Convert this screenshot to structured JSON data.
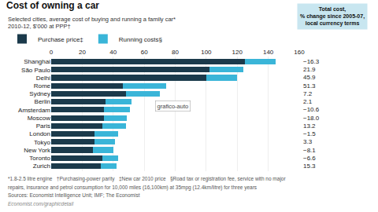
{
  "chart_data": {
    "type": "bar",
    "orientation": "horizontal",
    "stacked": true,
    "grid": true,
    "legend": "top left",
    "title": "Cost of owning a car",
    "subtitle": [
      "Selected cities, average cost of buying and running a family car*",
      "2010-12, $’000 at PPP†"
    ],
    "categories": [
      "Shanghai",
      "São Paulo",
      "Delhi",
      "Rome",
      "Sydney",
      "Berlin",
      "Amsterdam",
      "Moscow",
      "Paris",
      "London",
      "Tokyo",
      "New York",
      "Toronto",
      "Zurich"
    ],
    "series": [
      {
        "name": "Purchase price‡",
        "color": "#1b3a4b",
        "values": [
          125,
          102,
          100,
          46,
          48,
          35,
          34,
          34,
          33,
          28,
          28,
          27,
          33,
          32
        ]
      },
      {
        "name": "Running costs§",
        "color": "#3ab5d8",
        "values": [
          20,
          22,
          20,
          28,
          22,
          17,
          17,
          15,
          15,
          15,
          13,
          13,
          10,
          10
        ]
      }
    ],
    "xlim": [
      0,
      160
    ],
    "xticks": [
      0,
      20,
      40,
      60,
      80,
      100,
      120,
      140,
      160
    ],
    "change": {
      "title": [
        "Total cost,",
        "% change since 2005-07,",
        "local currency terms"
      ],
      "values": [
        -16.3,
        21.9,
        45.9,
        51.3,
        7.2,
        2.1,
        -10.6,
        -18.0,
        13.2,
        -1.5,
        3.3,
        -8.1,
        -6.6,
        15.3
      ],
      "value_labels": [
        "−16.3",
        "21.9",
        "45.9",
        "51.3",
        "7.2",
        "2.1",
        "−10.6",
        "−18.0",
        "13.2",
        "−1.5",
        "3.3",
        "−8.1",
        "−6.6",
        "15.3"
      ]
    },
    "annotations": [
      "grafico-auto"
    ],
    "footnotes": [
      "*1.8-2.5 litre engine   †Purchasing-power parity   ‡New car 2010 price   §Road tax or registration fee, service with no major",
      "repairs, insurance and petrol consumption for 10,000 miles (16,100km) at 35mpg (12.4km/litre) for three years",
      "Sources: Economist Intelligence Unit; IMF; The Economist",
      "Economist.com/graphicdetail"
    ]
  }
}
